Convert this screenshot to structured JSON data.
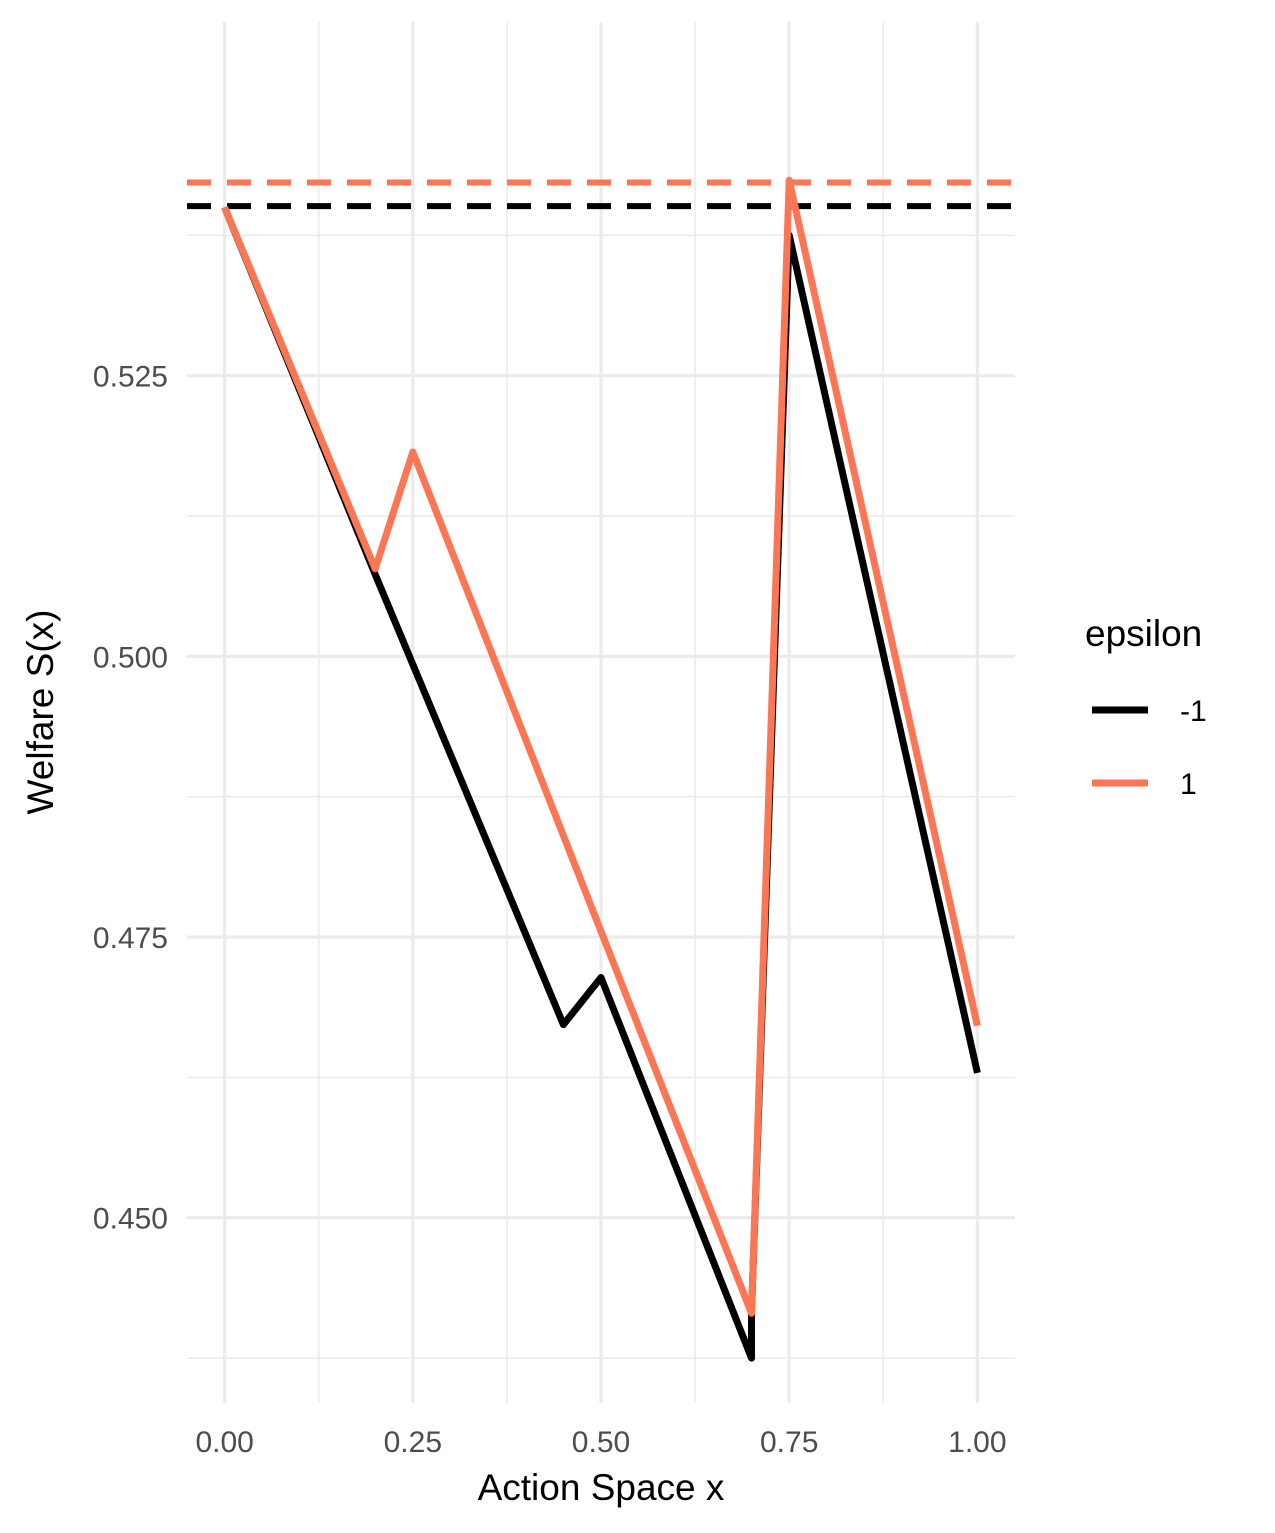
{
  "chart_data": {
    "type": "line",
    "xlabel": "Action Space x",
    "ylabel": "Welfare S(x)",
    "xlim": [
      -0.05,
      1.05
    ],
    "ylim": [
      0.4335,
      0.5565
    ],
    "x_ticks": [
      0,
      0.25,
      0.5,
      0.75,
      1
    ],
    "x_tick_labels": [
      "0.00",
      "0.25",
      "0.50",
      "0.75",
      "1.00"
    ],
    "y_ticks": [
      0.45,
      0.475,
      0.5,
      0.525
    ],
    "y_tick_labels": [
      "0.450",
      "0.475",
      "0.500",
      "0.525"
    ],
    "grid": true,
    "legend": {
      "title": "epsilon",
      "position": "right",
      "entries": [
        {
          "label": "-1",
          "color": "#000000"
        },
        {
          "label": "1",
          "color": "#FA7654"
        }
      ]
    },
    "series": [
      {
        "name": "-1",
        "color": "#000000",
        "x": [
          0,
          0.2,
          0.45,
          0.5,
          0.7,
          0.7,
          0.75,
          1
        ],
        "y": [
          0.54,
          0.5073,
          0.4672,
          0.4714,
          0.4375,
          0.4415,
          0.5375,
          0.4629
        ]
      },
      {
        "name": "1",
        "color": "#FA7654",
        "x": [
          0,
          0.2,
          0.25,
          0.5,
          0.7,
          0.7,
          0.75,
          1
        ],
        "y": [
          0.54,
          0.5078,
          0.5182,
          0.4755,
          0.4415,
          0.4415,
          0.5424,
          0.4671
        ]
      }
    ],
    "reference_lines": [
      {
        "series": "-1",
        "y": 0.5401,
        "color": "#000000",
        "style": "dashed"
      },
      {
        "series": "1",
        "y": 0.5422,
        "color": "#FA7654",
        "style": "dashed"
      }
    ]
  }
}
